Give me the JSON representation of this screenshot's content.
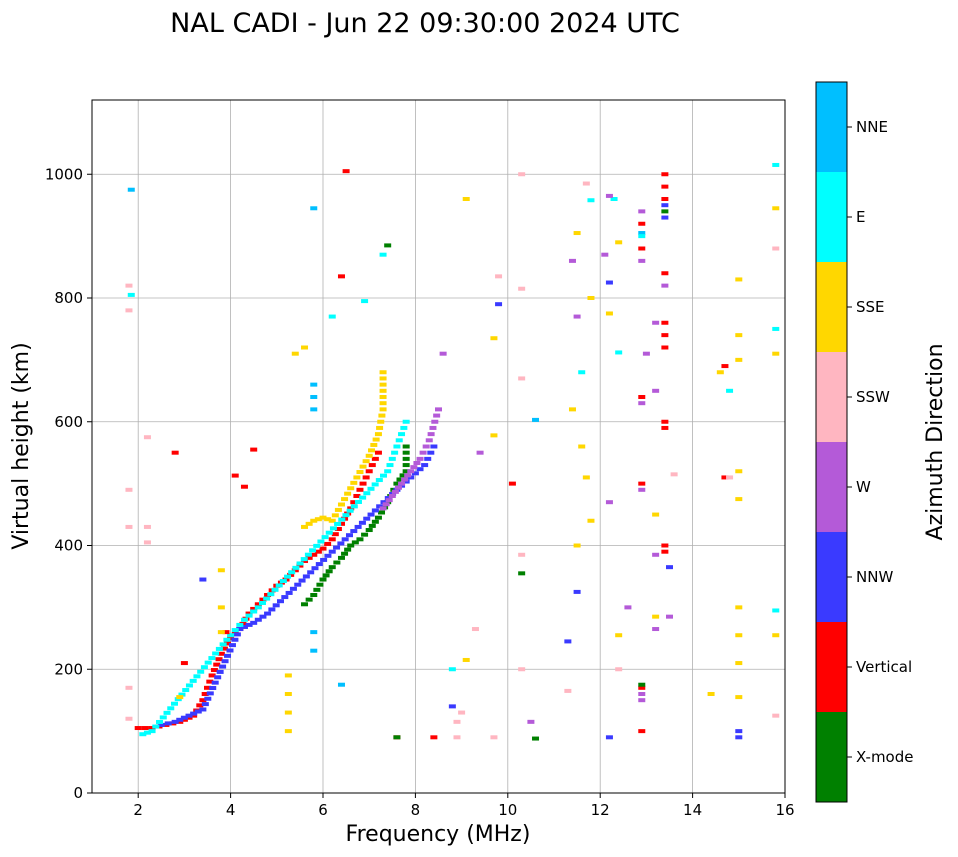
{
  "chart_data": {
    "type": "scatter",
    "title": "NAL CADI - Jun 22 09:30:00 2024 UTC",
    "xlabel": "Frequency (MHz)",
    "ylabel": "Virtual height (km)",
    "xlim": [
      1,
      16
    ],
    "ylim": [
      0,
      1120
    ],
    "xticks": [
      2,
      4,
      6,
      8,
      10,
      12,
      14,
      16
    ],
    "yticks": [
      0,
      200,
      400,
      600,
      800,
      1000
    ],
    "grid": true,
    "colorbar": {
      "title": "Azimuth Direction",
      "categories": [
        {
          "name": "X-mode",
          "color": "#008000"
        },
        {
          "name": "Vertical",
          "color": "#ff0000"
        },
        {
          "name": "NNW",
          "color": "#3a3aff"
        },
        {
          "name": "W",
          "color": "#b45ad8"
        },
        {
          "name": "SSW",
          "color": "#ffb6c1"
        },
        {
          "name": "SSE",
          "color": "#ffd700"
        },
        {
          "name": "E",
          "color": "#00ffff"
        },
        {
          "name": "NNE",
          "color": "#00bfff"
        }
      ]
    },
    "trace_segments": [
      {
        "name": "X-mode",
        "points": [
          [
            5.6,
            305
          ],
          [
            5.8,
            320
          ],
          [
            6.0,
            345
          ],
          [
            6.2,
            365
          ],
          [
            6.4,
            380
          ],
          [
            6.6,
            400
          ],
          [
            6.8,
            410
          ],
          [
            7.0,
            425
          ],
          [
            7.2,
            445
          ],
          [
            7.4,
            470
          ],
          [
            7.6,
            500
          ],
          [
            7.8,
            520
          ],
          [
            7.8,
            560
          ]
        ]
      },
      {
        "name": "Vertical",
        "points": [
          [
            2.0,
            105
          ],
          [
            2.3,
            105
          ],
          [
            2.6,
            110
          ],
          [
            2.9,
            115
          ],
          [
            3.2,
            125
          ],
          [
            3.4,
            150
          ],
          [
            3.6,
            190
          ],
          [
            3.8,
            225
          ],
          [
            4.0,
            250
          ],
          [
            4.2,
            265
          ],
          [
            4.4,
            290
          ],
          [
            4.6,
            305
          ],
          [
            4.8,
            320
          ],
          [
            5.0,
            335
          ],
          [
            5.2,
            345
          ],
          [
            5.4,
            360
          ],
          [
            5.6,
            375
          ],
          [
            5.8,
            385
          ],
          [
            6.0,
            395
          ],
          [
            6.2,
            410
          ],
          [
            6.4,
            435
          ],
          [
            6.6,
            460
          ],
          [
            6.8,
            490
          ],
          [
            7.0,
            520
          ],
          [
            7.2,
            550
          ]
        ]
      },
      {
        "name": "NNW",
        "points": [
          [
            2.5,
            110
          ],
          [
            2.8,
            115
          ],
          [
            3.1,
            125
          ],
          [
            3.4,
            135
          ],
          [
            4.2,
            265
          ],
          [
            4.5,
            275
          ],
          [
            4.8,
            290
          ],
          [
            7.6,
            490
          ],
          [
            7.9,
            510
          ],
          [
            8.2,
            530
          ],
          [
            8.4,
            560
          ]
        ]
      },
      {
        "name": "W",
        "points": [
          [
            7.3,
            460
          ],
          [
            7.5,
            480
          ],
          [
            7.7,
            500
          ],
          [
            7.9,
            520
          ],
          [
            8.1,
            540
          ],
          [
            8.3,
            570
          ],
          [
            8.5,
            620
          ]
        ]
      },
      {
        "name": "SSE",
        "points": [
          [
            5.6,
            430
          ],
          [
            5.8,
            440
          ],
          [
            6.0,
            445
          ],
          [
            6.2,
            440
          ],
          [
            7.0,
            545
          ],
          [
            7.2,
            580
          ],
          [
            7.3,
            620
          ],
          [
            7.3,
            680
          ]
        ]
      },
      {
        "name": "E",
        "points": [
          [
            2.1,
            95
          ],
          [
            2.3,
            100
          ],
          [
            4.0,
            255
          ],
          [
            4.3,
            280
          ],
          [
            4.6,
            300
          ],
          [
            7.4,
            520
          ],
          [
            7.6,
            560
          ],
          [
            7.8,
            600
          ]
        ]
      }
    ],
    "scatter_points": [
      {
        "name": "NNE",
        "points": [
          [
            1.85,
            975
          ],
          [
            5.8,
            945
          ],
          [
            5.8,
            620
          ],
          [
            5.8,
            640
          ],
          [
            5.8,
            660
          ],
          [
            5.8,
            230
          ],
          [
            5.8,
            260
          ],
          [
            10.6,
            603
          ],
          [
            12.9,
            905
          ],
          [
            6.4,
            175
          ]
        ]
      },
      {
        "name": "E",
        "points": [
          [
            1.85,
            805
          ],
          [
            7.3,
            870
          ],
          [
            6.9,
            795
          ],
          [
            6.2,
            770
          ],
          [
            11.8,
            958
          ],
          [
            12.3,
            960
          ],
          [
            12.9,
            900
          ],
          [
            14.8,
            650
          ],
          [
            15.8,
            750
          ],
          [
            15.8,
            295
          ],
          [
            15.8,
            1015
          ],
          [
            12.4,
            712
          ],
          [
            11.6,
            680
          ],
          [
            8.8,
            200
          ]
        ]
      },
      {
        "name": "Vertical",
        "points": [
          [
            6.5,
            1005
          ],
          [
            6.4,
            835
          ],
          [
            12.9,
            920
          ],
          [
            12.9,
            880
          ],
          [
            13.4,
            1000
          ],
          [
            13.4,
            980
          ],
          [
            13.4,
            960
          ],
          [
            13.4,
            840
          ],
          [
            13.4,
            760
          ],
          [
            13.4,
            740
          ],
          [
            13.4,
            720
          ],
          [
            13.4,
            600
          ],
          [
            13.4,
            590
          ],
          [
            12.9,
            640
          ],
          [
            12.9,
            500
          ],
          [
            13.4,
            400
          ],
          [
            13.4,
            390
          ],
          [
            12.9,
            100
          ],
          [
            12.9,
            170
          ],
          [
            10.1,
            500
          ],
          [
            8.4,
            90
          ],
          [
            7.6,
            90
          ],
          [
            4.1,
            513
          ],
          [
            4.3,
            495
          ],
          [
            4.5,
            555
          ],
          [
            3.9,
            260
          ],
          [
            2.8,
            550
          ],
          [
            3.0,
            210
          ],
          [
            14.7,
            690
          ],
          [
            14.7,
            510
          ]
        ]
      },
      {
        "name": "W",
        "points": [
          [
            11.4,
            860
          ],
          [
            12.1,
            870
          ],
          [
            12.9,
            940
          ],
          [
            12.9,
            860
          ],
          [
            13.4,
            820
          ],
          [
            13.2,
            760
          ],
          [
            13.0,
            710
          ],
          [
            13.2,
            650
          ],
          [
            12.9,
            630
          ],
          [
            12.6,
            300
          ],
          [
            13.2,
            265
          ],
          [
            13.2,
            385
          ],
          [
            12.9,
            490
          ],
          [
            12.2,
            965
          ],
          [
            11.5,
            770
          ],
          [
            10.5,
            115
          ],
          [
            13.5,
            285
          ],
          [
            12.2,
            470
          ],
          [
            8.6,
            710
          ],
          [
            9.4,
            550
          ],
          [
            12.9,
            150
          ],
          [
            12.9,
            160
          ]
        ]
      },
      {
        "name": "NNW",
        "points": [
          [
            9.8,
            790
          ],
          [
            12.2,
            825
          ],
          [
            13.4,
            930
          ],
          [
            13.4,
            950
          ],
          [
            13.5,
            365
          ],
          [
            11.3,
            245
          ],
          [
            11.5,
            325
          ],
          [
            12.2,
            90
          ],
          [
            15.0,
            90
          ],
          [
            15.0,
            100
          ],
          [
            3.4,
            345
          ],
          [
            8.8,
            140
          ]
        ]
      },
      {
        "name": "SSW",
        "points": [
          [
            1.8,
            820
          ],
          [
            1.8,
            780
          ],
          [
            1.8,
            490
          ],
          [
            1.8,
            430
          ],
          [
            1.8,
            170
          ],
          [
            1.8,
            120
          ],
          [
            10.3,
            1000
          ],
          [
            10.3,
            815
          ],
          [
            10.3,
            670
          ],
          [
            10.3,
            385
          ],
          [
            10.3,
            200
          ],
          [
            11.7,
            985
          ],
          [
            15.8,
            880
          ],
          [
            15.8,
            125
          ],
          [
            14.8,
            510
          ],
          [
            13.6,
            515
          ],
          [
            11.3,
            165
          ],
          [
            12.4,
            200
          ],
          [
            8.9,
            90
          ],
          [
            9.0,
            130
          ],
          [
            8.9,
            115
          ],
          [
            2.2,
            430
          ],
          [
            2.2,
            405
          ],
          [
            2.2,
            575
          ],
          [
            9.8,
            835
          ],
          [
            9.7,
            90
          ],
          [
            9.3,
            265
          ]
        ]
      },
      {
        "name": "SSE",
        "points": [
          [
            5.25,
            100
          ],
          [
            5.25,
            130
          ],
          [
            5.25,
            160
          ],
          [
            5.25,
            190
          ],
          [
            9.1,
            960
          ],
          [
            11.5,
            905
          ],
          [
            11.8,
            800
          ],
          [
            12.2,
            775
          ],
          [
            11.4,
            620
          ],
          [
            11.6,
            560
          ],
          [
            11.7,
            510
          ],
          [
            11.5,
            400
          ],
          [
            11.8,
            440
          ],
          [
            12.4,
            890
          ],
          [
            12.4,
            255
          ],
          [
            13.2,
            450
          ],
          [
            13.2,
            285
          ],
          [
            15.0,
            830
          ],
          [
            15.0,
            740
          ],
          [
            15.0,
            700
          ],
          [
            15.0,
            520
          ],
          [
            15.0,
            475
          ],
          [
            15.0,
            300
          ],
          [
            15.0,
            255
          ],
          [
            15.0,
            210
          ],
          [
            15.0,
            155
          ],
          [
            15.8,
            945
          ],
          [
            15.8,
            710
          ],
          [
            15.8,
            255
          ],
          [
            14.6,
            680
          ],
          [
            14.4,
            160
          ],
          [
            9.1,
            215
          ],
          [
            9.7,
            735
          ],
          [
            9.7,
            578
          ],
          [
            5.4,
            710
          ],
          [
            5.6,
            720
          ],
          [
            3.8,
            300
          ],
          [
            3.8,
            260
          ],
          [
            3.8,
            360
          ],
          [
            2.9,
            155
          ]
        ]
      },
      {
        "name": "X-mode",
        "points": [
          [
            7.4,
            885
          ],
          [
            12.9,
            175
          ],
          [
            13.4,
            940
          ],
          [
            10.3,
            355
          ],
          [
            10.6,
            88
          ],
          [
            7.6,
            90
          ]
        ]
      }
    ]
  }
}
